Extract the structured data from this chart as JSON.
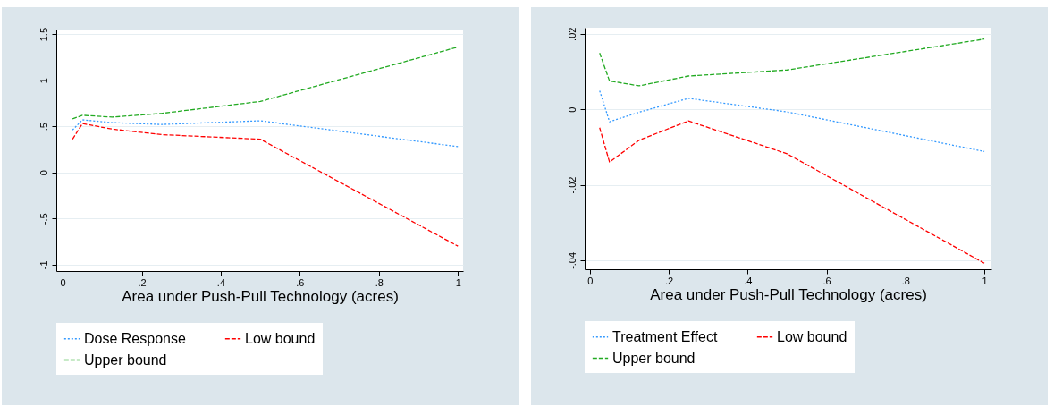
{
  "chart_data": [
    {
      "type": "line",
      "xlabel": "Area under Push-Pull Technology (acres)",
      "x": [
        0.025,
        0.05,
        0.125,
        0.25,
        0.5,
        1
      ],
      "xlim": [
        -0.016,
        1.013
      ],
      "xticks": [
        {
          "value": 0,
          "label": "0"
        },
        {
          "value": 0.2,
          "label": ".2"
        },
        {
          "value": 0.4,
          "label": ".4"
        },
        {
          "value": 0.6,
          "label": ".6"
        },
        {
          "value": 0.8,
          "label": ".8"
        },
        1
      ],
      "ylim": [
        -1.07,
        1.55
      ],
      "yticks": [
        -1,
        {
          "value": -0.5,
          "label": "-.5"
        },
        {
          "value": 0,
          "label": "0"
        },
        {
          "value": 0.5,
          "label": ".5"
        },
        1,
        1.5
      ],
      "grid": "y",
      "legend": "bottom",
      "series": [
        {
          "name": "Dose Response",
          "color": "#3399ff",
          "line_style": "dotted",
          "values": [
            0.46,
            0.57,
            0.54,
            0.52,
            0.56,
            0.28
          ]
        },
        {
          "name": "Low bound",
          "color": "#ff0000",
          "line_style": "dashed",
          "values": [
            0.36,
            0.53,
            0.47,
            0.41,
            0.36,
            -0.8
          ]
        },
        {
          "name": "Upper bound",
          "color": "#22aa22",
          "line_style": "dashed",
          "values": [
            0.58,
            0.62,
            0.6,
            0.64,
            0.77,
            1.36
          ]
        }
      ]
    },
    {
      "type": "line",
      "xlabel": "Area under Push-Pull Technology (acres)",
      "x": [
        0.025,
        0.05,
        0.125,
        0.25,
        0.5,
        1
      ],
      "xlim": [
        -0.013,
        1.018
      ],
      "xticks": [
        {
          "value": 0,
          "label": "0"
        },
        {
          "value": 0.2,
          "label": ".2"
        },
        {
          "value": 0.4,
          "label": ".4"
        },
        {
          "value": 0.6,
          "label": ".6"
        },
        {
          "value": 0.8,
          "label": ".8"
        },
        1
      ],
      "ylim": [
        -0.0424,
        0.0216
      ],
      "yticks": [
        {
          "value": -0.04,
          "label": "-.04"
        },
        {
          "value": -0.02,
          "label": "-.02"
        },
        {
          "value": 0,
          "label": "0"
        },
        {
          "value": 0.02,
          "label": ".02"
        }
      ],
      "grid": "y",
      "legend": "bottom",
      "series": [
        {
          "name": "Treatment Effect",
          "color": "#3399ff",
          "line_style": "dotted",
          "values": [
            0.0049,
            -0.0033,
            -0.0008,
            0.0029,
            -0.0007,
            -0.0112
          ]
        },
        {
          "name": "Low bound",
          "color": "#ff0000",
          "line_style": "dashed",
          "values": [
            -0.0049,
            -0.014,
            -0.0082,
            -0.0031,
            -0.0118,
            -0.0408
          ]
        },
        {
          "name": "Upper bound",
          "color": "#22aa22",
          "line_style": "dashed",
          "values": [
            0.0149,
            0.0075,
            0.0062,
            0.0088,
            0.0104,
            0.0186
          ]
        }
      ]
    }
  ]
}
